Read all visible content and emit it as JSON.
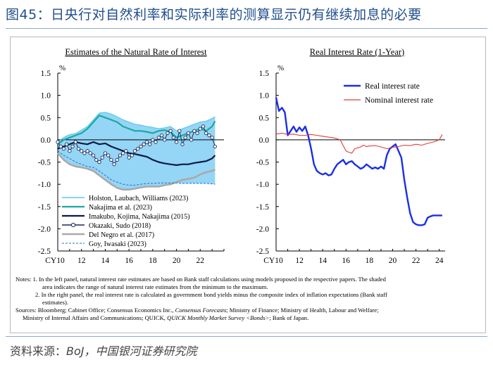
{
  "figure": {
    "title": "图45：日央行对自然利率和实际利率的测算显示仍有继续加息的必要",
    "source_label": "资料来源：",
    "source_text": "BoJ，中国银河证券研究院",
    "notes": {
      "n1_prefix": "Notes: 1. ",
      "n1_line1": "In the left panel, natural interest rate estimates are based on Bank staff calculations using models proposed in the respective papers. The shaded",
      "n1_line2": "area indicates the range of natural interest rate estimates from the minimum to the maximum.",
      "n2_prefix": "2. ",
      "n2_line1": "In the right panel, the real interest rate is calculated as government bond yields minus the composite index of inflation expectations (Bank staff",
      "n2_line2": "estimates).",
      "sources_line1_a": "Sources: Bloomberg; Cabinet Office; Consensus Economics Inc., ",
      "sources_line1_b": "Consensus Forecasts",
      "sources_line1_c": "; Ministry of Finance; Ministry of Health, Labour and Welfare;",
      "sources_line2_a": "Ministry of Internal Affairs and Communications; QUICK, ",
      "sources_line2_b": "QUICK Monthly Market Survey <Bonds>",
      "sources_line2_c": "; Bank of Japan."
    }
  },
  "colors": {
    "title": "#1f4e8c",
    "holston": "#5bc8f0",
    "nakajima": "#1aa9a0",
    "imakubo": "#0a1a44",
    "okazaki": "#1a2a55",
    "delnegro": "#a9a9a9",
    "goy": "#1f6fd1",
    "shade": "#8fd3f4",
    "real": "#1a2ee8",
    "nominal": "#e23a3a"
  },
  "chart_data": [
    {
      "type": "line",
      "title": "Estimates of the Natural Rate of Interest",
      "unit": "%",
      "xlim": [
        2010,
        2024
      ],
      "ylim": [
        -2.5,
        1.5
      ],
      "y_ticks": [
        1.5,
        1.0,
        0.5,
        0.0,
        -0.5,
        -1.0,
        -1.5,
        -2.0,
        -2.5
      ],
      "y_tick_labels": [
        "1.5",
        "1.0",
        "0.5",
        "0.0",
        "-0.5",
        "-1.0",
        "-1.5",
        "-2.0",
        "-2.5"
      ],
      "x_ticks": [
        2010,
        2012,
        2014,
        2016,
        2018,
        2020,
        2022
      ],
      "x_tick_labels": [
        "CY10",
        "12",
        "14",
        "16",
        "18",
        "20",
        "22"
      ],
      "shaded_range": "min to max of natural rate estimates",
      "series": [
        {
          "name": "Holston, Laubach, Williams (2023)",
          "key": "holston",
          "x": [
            2010.0,
            2010.5,
            2011.0,
            2011.5,
            2012.0,
            2012.5,
            2013.0,
            2013.5,
            2014.0,
            2014.5,
            2015.0,
            2015.5,
            2016.0,
            2016.5,
            2017.0,
            2017.5,
            2018.0,
            2018.5,
            2019.0,
            2019.5,
            2020.0,
            2020.5,
            2021.0,
            2021.5,
            2022.0,
            2022.5,
            2023.0,
            2023.25
          ],
          "y": [
            -0.05,
            0.05,
            0.12,
            0.14,
            0.22,
            0.3,
            0.45,
            0.6,
            0.62,
            0.58,
            0.52,
            0.45,
            0.4,
            0.35,
            0.33,
            0.3,
            0.28,
            0.25,
            0.27,
            0.3,
            0.2,
            0.25,
            0.3,
            0.35,
            0.4,
            0.42,
            0.48,
            0.52
          ]
        },
        {
          "name": "Nakajima et al. (2023)",
          "key": "nakajima",
          "x": [
            2010.0,
            2010.5,
            2011.0,
            2011.5,
            2012.0,
            2012.5,
            2013.0,
            2013.5,
            2014.0,
            2014.5,
            2015.0,
            2015.5,
            2016.0,
            2016.5,
            2017.0,
            2017.5,
            2018.0,
            2018.5,
            2019.0,
            2019.5,
            2020.0,
            2020.5,
            2021.0,
            2021.5,
            2022.0,
            2022.5,
            2023.0,
            2023.25
          ],
          "y": [
            -0.1,
            0.0,
            0.05,
            0.1,
            0.15,
            0.25,
            0.4,
            0.55,
            0.5,
            0.45,
            0.4,
            0.3,
            0.25,
            0.2,
            0.2,
            0.18,
            0.15,
            0.2,
            0.22,
            0.18,
            0.05,
            0.1,
            0.15,
            0.2,
            0.25,
            0.2,
            0.3,
            0.42
          ]
        },
        {
          "name": "Imakubo, Kojima, Nakajima (2015)",
          "key": "imakubo",
          "x": [
            2010.0,
            2010.5,
            2011.0,
            2011.5,
            2012.0,
            2012.5,
            2013.0,
            2013.5,
            2014.0,
            2014.5,
            2015.0,
            2015.5,
            2016.0,
            2016.5,
            2017.0,
            2017.5,
            2018.0,
            2018.5,
            2019.0,
            2019.5,
            2020.0,
            2020.5,
            2021.0,
            2021.5,
            2022.0,
            2022.5,
            2023.0,
            2023.25
          ],
          "y": [
            -0.2,
            -0.15,
            -0.1,
            -0.05,
            -0.08,
            -0.1,
            -0.05,
            -0.1,
            -0.08,
            -0.15,
            -0.2,
            -0.25,
            -0.3,
            -0.32,
            -0.35,
            -0.38,
            -0.45,
            -0.5,
            -0.53,
            -0.55,
            -0.57,
            -0.55,
            -0.55,
            -0.52,
            -0.5,
            -0.48,
            -0.42,
            -0.35
          ]
        },
        {
          "name": "Okazaki, Sudo (2018)",
          "key": "okazaki",
          "x": [
            2010.0,
            2010.25,
            2010.5,
            2010.75,
            2011.0,
            2011.25,
            2011.5,
            2011.75,
            2012.0,
            2012.25,
            2012.5,
            2012.75,
            2013.0,
            2013.25,
            2013.5,
            2013.75,
            2014.0,
            2014.25,
            2014.5,
            2014.75,
            2015.0,
            2015.25,
            2015.5,
            2015.75,
            2016.0,
            2016.25,
            2016.5,
            2016.75,
            2017.0,
            2017.25,
            2017.5,
            2017.75,
            2018.0,
            2018.25,
            2018.5,
            2018.75,
            2019.0,
            2019.25,
            2019.5,
            2019.75,
            2020.0,
            2020.25,
            2020.5,
            2020.75,
            2021.0,
            2021.25,
            2021.5,
            2021.75,
            2022.0,
            2022.25,
            2022.5,
            2022.75,
            2023.0,
            2023.25
          ],
          "y": [
            -0.05,
            -0.15,
            -0.2,
            -0.1,
            -0.25,
            -0.15,
            -0.05,
            -0.2,
            -0.25,
            -0.3,
            -0.25,
            -0.3,
            -0.35,
            -0.45,
            -0.5,
            -0.4,
            -0.3,
            -0.35,
            -0.45,
            -0.55,
            -0.45,
            -0.35,
            -0.3,
            -0.25,
            -0.4,
            -0.35,
            -0.25,
            -0.2,
            -0.15,
            -0.1,
            -0.05,
            -0.1,
            0.0,
            -0.05,
            0.05,
            0.1,
            0.0,
            0.15,
            0.2,
            0.05,
            -0.05,
            0.2,
            -0.1,
            0.05,
            0.15,
            0.0,
            0.2,
            0.15,
            0.25,
            0.3,
            0.15,
            0.1,
            0.05,
            -0.15
          ]
        },
        {
          "name": "Del Negro et al. (2017)",
          "key": "delnegro",
          "x": [
            2010.0,
            2010.5,
            2011.0,
            2011.5,
            2012.0,
            2012.5,
            2013.0,
            2013.5,
            2014.0,
            2014.5,
            2015.0,
            2015.5,
            2016.0,
            2016.5,
            2017.0,
            2017.5,
            2018.0,
            2018.5,
            2019.0,
            2019.5,
            2020.0,
            2020.5,
            2021.0,
            2021.5,
            2022.0,
            2022.5,
            2023.0,
            2023.25
          ],
          "y": [
            -0.3,
            -0.45,
            -0.55,
            -0.6,
            -0.62,
            -0.65,
            -0.7,
            -0.8,
            -0.9,
            -1.0,
            -1.08,
            -1.12,
            -1.12,
            -1.1,
            -1.07,
            -1.05,
            -1.05,
            -1.05,
            -1.02,
            -1.0,
            -0.95,
            -0.9,
            -0.88,
            -0.85,
            -0.78,
            -0.73,
            -0.7,
            -0.67
          ]
        },
        {
          "name": "Goy, Iwasaki (2023)",
          "key": "goy",
          "x": [
            2010.0,
            2010.5,
            2011.0,
            2011.5,
            2012.0,
            2012.5,
            2013.0,
            2013.5,
            2014.0,
            2014.5,
            2015.0,
            2015.5,
            2016.0,
            2016.5,
            2017.0,
            2017.5,
            2018.0,
            2018.5,
            2019.0,
            2019.5,
            2020.0,
            2020.5,
            2021.0,
            2021.5,
            2022.0,
            2022.5,
            2023.0,
            2023.25
          ],
          "y": [
            -0.25,
            -0.35,
            -0.42,
            -0.5,
            -0.55,
            -0.6,
            -0.62,
            -0.7,
            -0.8,
            -0.9,
            -0.95,
            -1.0,
            -1.02,
            -1.02,
            -1.0,
            -0.98,
            -0.98,
            -0.97,
            -0.97,
            -0.97,
            -0.97,
            -0.98,
            -0.98,
            -0.98,
            -0.98,
            -0.98,
            -0.99,
            -1.0
          ]
        }
      ]
    },
    {
      "type": "line",
      "title": "Real Interest Rate (1-Year)",
      "unit": "%",
      "xlim": [
        2010,
        2024.5
      ],
      "ylim": [
        -2.5,
        1.5
      ],
      "y_ticks": [
        1.5,
        1.0,
        0.5,
        0.0,
        -0.5,
        -1.0,
        -1.5,
        -2.0,
        -2.5
      ],
      "y_tick_labels": [
        "1.5",
        "1.0",
        "0.5",
        "0.0",
        "-0.5",
        "-1.0",
        "-1.5",
        "-2.0",
        "-2.5"
      ],
      "x_ticks": [
        2010,
        2012,
        2014,
        2016,
        2018,
        2020,
        2022,
        2024
      ],
      "x_tick_labels": [
        "CY10",
        "12",
        "14",
        "16",
        "18",
        "20",
        "22",
        "24"
      ],
      "series": [
        {
          "name": "Real interest rate",
          "key": "real",
          "x": [
            2010.0,
            2010.25,
            2010.5,
            2010.75,
            2011.0,
            2011.25,
            2011.5,
            2011.75,
            2012.0,
            2012.25,
            2012.5,
            2012.75,
            2013.0,
            2013.25,
            2013.5,
            2013.75,
            2014.0,
            2014.25,
            2014.5,
            2014.75,
            2015.0,
            2015.25,
            2015.5,
            2015.75,
            2016.0,
            2016.25,
            2016.5,
            2016.75,
            2017.0,
            2017.25,
            2017.5,
            2017.75,
            2018.0,
            2018.25,
            2018.5,
            2018.75,
            2019.0,
            2019.25,
            2019.5,
            2019.75,
            2020.0,
            2020.25,
            2020.5,
            2020.75,
            2021.0,
            2021.25,
            2021.5,
            2021.75,
            2022.0,
            2022.25,
            2022.5,
            2022.75,
            2023.0,
            2023.25,
            2023.5,
            2023.75,
            2024.0,
            2024.25
          ],
          "y": [
            0.95,
            0.65,
            0.72,
            0.62,
            0.1,
            0.2,
            0.3,
            0.18,
            0.28,
            0.2,
            0.3,
            0.1,
            -0.2,
            -0.55,
            -0.7,
            -0.75,
            -0.78,
            -0.75,
            -0.8,
            -0.78,
            -0.65,
            -0.55,
            -0.5,
            -0.45,
            -0.55,
            -0.5,
            -0.48,
            -0.55,
            -0.6,
            -0.65,
            -0.62,
            -0.55,
            -0.6,
            -0.65,
            -0.62,
            -0.65,
            -0.6,
            -0.65,
            -0.35,
            -0.2,
            -0.15,
            -0.1,
            -0.25,
            -0.4,
            -0.9,
            -1.3,
            -1.65,
            -1.85,
            -1.9,
            -1.92,
            -1.92,
            -1.9,
            -1.75,
            -1.72,
            -1.7,
            -1.7,
            -1.7,
            -1.7
          ]
        },
        {
          "name": "Nominal interest rate",
          "key": "nominal",
          "x": [
            2010.0,
            2010.5,
            2011.0,
            2011.5,
            2012.0,
            2012.5,
            2013.0,
            2013.5,
            2014.0,
            2014.5,
            2015.0,
            2015.5,
            2016.0,
            2016.25,
            2016.5,
            2016.75,
            2017.0,
            2017.25,
            2017.5,
            2017.75,
            2018.0,
            2018.5,
            2019.0,
            2019.5,
            2020.0,
            2020.5,
            2021.0,
            2021.5,
            2022.0,
            2022.5,
            2023.0,
            2023.5,
            2024.0,
            2024.25
          ],
          "y": [
            0.13,
            0.15,
            0.12,
            0.13,
            0.1,
            0.1,
            0.12,
            0.1,
            0.08,
            0.06,
            0.04,
            0.0,
            -0.25,
            -0.28,
            -0.3,
            -0.2,
            -0.18,
            -0.16,
            -0.12,
            -0.15,
            -0.14,
            -0.13,
            -0.16,
            -0.2,
            -0.17,
            -0.15,
            -0.12,
            -0.13,
            -0.1,
            -0.12,
            -0.08,
            -0.05,
            0.0,
            0.12
          ]
        }
      ]
    }
  ]
}
